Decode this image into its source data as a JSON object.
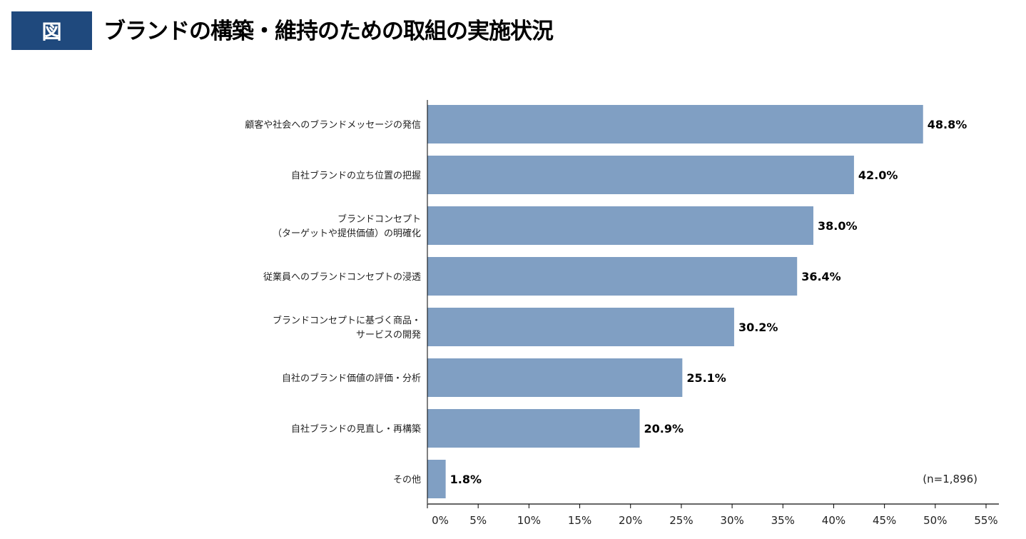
{
  "header": {
    "badge": "図",
    "title": "ブランドの構築・維持のための取組の実施状況"
  },
  "chart_data": {
    "type": "bar",
    "orientation": "horizontal",
    "title": "ブランドの構築・維持のための取組の実施状況",
    "categories": [
      [
        "顧客や社会へのブランドメッセージの発信"
      ],
      [
        "自社ブランドの立ち位置の把握"
      ],
      [
        "ブランドコンセプト",
        "（ターゲットや提供価値）の明確化"
      ],
      [
        "従業員へのブランドコンセプトの浸透"
      ],
      [
        "ブランドコンセプトに基づく商品・",
        "サービスの開発"
      ],
      [
        "自社のブランド価値の評価・分析"
      ],
      [
        "自社ブランドの見直し・再構築"
      ],
      [
        "その他"
      ]
    ],
    "values": [
      48.8,
      42.0,
      38.0,
      36.4,
      30.2,
      25.1,
      20.9,
      1.8
    ],
    "value_labels": [
      "48.8%",
      "42.0%",
      "38.0%",
      "36.4%",
      "30.2%",
      "25.1%",
      "20.9%",
      "1.8%"
    ],
    "xlim": [
      0,
      55
    ],
    "ticks": [
      0,
      5,
      10,
      15,
      20,
      25,
      30,
      35,
      40,
      45,
      50,
      55
    ],
    "tick_labels": [
      "0%",
      "5%",
      "10%",
      "15%",
      "20%",
      "25%",
      "30%",
      "35%",
      "40%",
      "45%",
      "50%",
      "55%"
    ],
    "annotation": "(n=1,896)",
    "bar_color": "#809fc3",
    "grid": false
  }
}
